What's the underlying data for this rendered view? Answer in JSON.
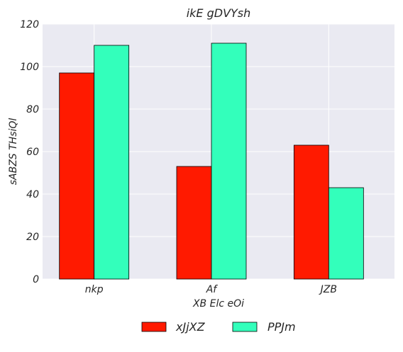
{
  "chart_data": {
    "type": "bar",
    "title": "ikE gDVYsh",
    "xlabel": "XB Elc eOi",
    "ylabel": "sABZS THsiQl",
    "categories": [
      "nkp",
      "Af",
      "JZB"
    ],
    "series": [
      {
        "name": "xJjXZ",
        "values": [
          97,
          53,
          63
        ],
        "color": "#ff1a00"
      },
      {
        "name": "PPJm",
        "values": [
          110,
          111,
          43
        ],
        "color": "#33ffbb"
      }
    ],
    "ylim": [
      0,
      120
    ],
    "yticks": [
      0,
      20,
      40,
      60,
      80,
      100,
      120
    ],
    "grid": true,
    "legend_position": "bottom-center",
    "colors": {
      "plot_background": "#eaeaf2",
      "grid": "#ffffff",
      "bar_edge": "#000000",
      "text": "#262626"
    }
  }
}
